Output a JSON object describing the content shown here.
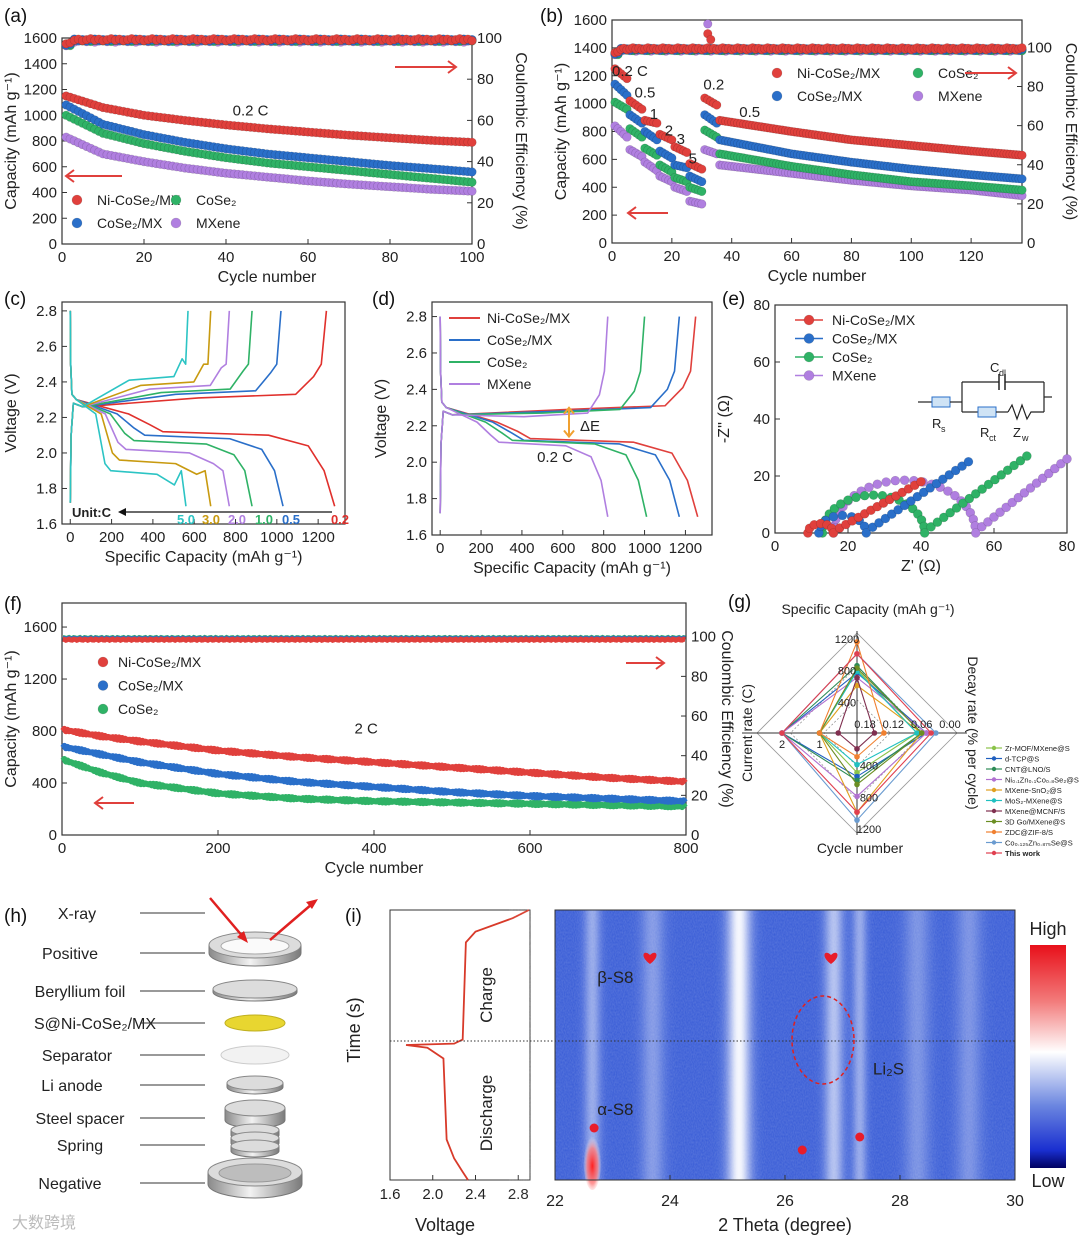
{
  "figure_labels": {
    "a": "(a)",
    "b": "(b)",
    "c": "(c)",
    "d": "(d)",
    "e": "(e)",
    "f": "(f)",
    "g": "(g)",
    "h": "(h)",
    "i": "(i)"
  },
  "watermark": "大数跨境",
  "colors": {
    "ni": "#e0403c",
    "cosemx": "#2a6fc9",
    "cose": "#2fb266",
    "mxene": "#b07fe0",
    "arrow": "#e0403c"
  },
  "chart_data": [
    {
      "panel": "a",
      "type": "scatter",
      "title": "",
      "xlabel": "Cycle number",
      "ylabel": "Capacity (mAh g⁻¹)",
      "y2label": "Coulombic Efficiency (%)",
      "xlim": [
        0,
        100
      ],
      "ylim": [
        0,
        1600
      ],
      "y2lim": [
        0,
        100
      ],
      "xticks": [
        "0",
        "20",
        "40",
        "60",
        "80",
        "100"
      ],
      "yticks": [
        "0",
        "200",
        "400",
        "600",
        "800",
        "1000",
        "1200",
        "1400",
        "1600"
      ],
      "y2ticks": [
        "0",
        "20",
        "40",
        "60",
        "80",
        "100"
      ],
      "legend_placement": "bottom-left",
      "annotations": [
        {
          "text": "0.2 C",
          "x": 46,
          "y": 1000
        }
      ],
      "x": [
        1,
        10,
        20,
        30,
        40,
        50,
        60,
        70,
        80,
        90,
        100
      ],
      "series": [
        {
          "name": "Ni-CoSe₂/MX",
          "color": "#e0403c",
          "values": [
            1150,
            1060,
            1000,
            960,
            925,
            895,
            870,
            845,
            825,
            805,
            790
          ],
          "ce": 99.2
        },
        {
          "name": "CoSe₂/MX",
          "color": "#2a6fc9",
          "values": [
            1080,
            930,
            850,
            790,
            740,
            700,
            670,
            640,
            610,
            585,
            560
          ],
          "ce": 99.0
        },
        {
          "name": "CoSe₂",
          "color": "#2fb266",
          "values": [
            1000,
            860,
            780,
            720,
            670,
            630,
            600,
            570,
            540,
            510,
            480
          ],
          "ce": 98.8
        },
        {
          "name": "MXene",
          "color": "#b07fe0",
          "values": [
            830,
            700,
            640,
            590,
            550,
            520,
            490,
            465,
            445,
            425,
            410
          ],
          "ce": 98.5
        }
      ]
    },
    {
      "panel": "b",
      "type": "scatter",
      "title": "",
      "xlabel": "Cycle number",
      "ylabel": "Capacity (mAh g⁻¹)",
      "y2label": "Coulombic Efficiency (%)",
      "xlim": [
        0,
        137
      ],
      "ylim": [
        0,
        1600
      ],
      "y2lim": [
        0,
        114
      ],
      "xticks": [
        "0",
        "20",
        "40",
        "60",
        "80",
        "100",
        "120"
      ],
      "yticks": [
        "0",
        "200",
        "400",
        "600",
        "800",
        "1000",
        "1200",
        "1400",
        "1600"
      ],
      "y2ticks": [
        "0",
        "20",
        "40",
        "60",
        "80",
        "100"
      ],
      "legend_placement": "top-right",
      "rate_labels": [
        {
          "text": "0.2 C",
          "x": 6,
          "y": 1200
        },
        {
          "text": "0.5",
          "x": 11,
          "y": 1045
        },
        {
          "text": "1",
          "x": 14,
          "y": 890
        },
        {
          "text": "2",
          "x": 19,
          "y": 770
        },
        {
          "text": "3",
          "x": 23,
          "y": 710
        },
        {
          "text": "5",
          "x": 27,
          "y": 570
        },
        {
          "text": "0.2",
          "x": 34,
          "y": 1100
        },
        {
          "text": "0.5",
          "x": 46,
          "y": 905
        }
      ],
      "x": [
        1,
        5,
        6,
        10,
        11,
        15,
        16,
        20,
        21,
        25,
        26,
        30,
        31,
        35,
        36,
        60,
        80,
        100,
        120,
        137
      ],
      "series": [
        {
          "name": "Ni-CoSe₂/MX",
          "color": "#e0403c",
          "values": [
            1250,
            1180,
            1020,
            960,
            880,
            860,
            780,
            740,
            690,
            650,
            570,
            530,
            1040,
            990,
            880,
            800,
            740,
            700,
            660,
            630
          ],
          "ce": 99.3
        },
        {
          "name": "CoSe₂/MX",
          "color": "#2a6fc9",
          "values": [
            1140,
            1060,
            920,
            860,
            800,
            740,
            660,
            610,
            560,
            540,
            480,
            440,
            920,
            860,
            740,
            640,
            580,
            530,
            490,
            460
          ],
          "ce": 99.0
        },
        {
          "name": "CoSe₂",
          "color": "#2fb266",
          "values": [
            1010,
            960,
            820,
            760,
            680,
            630,
            560,
            510,
            470,
            440,
            400,
            370,
            810,
            760,
            640,
            550,
            490,
            440,
            410,
            380
          ],
          "ce": 98.8
        },
        {
          "name": "MXene",
          "color": "#b07fe0",
          "values": [
            840,
            760,
            670,
            620,
            580,
            520,
            480,
            440,
            400,
            370,
            300,
            280,
            670,
            640,
            560,
            500,
            450,
            410,
            380,
            340
          ],
          "ce": 98.6
        }
      ],
      "ce_outliers": [
        {
          "series": 0,
          "x": 32,
          "y": 107
        },
        {
          "series": 0,
          "x": 33,
          "y": 104
        },
        {
          "series": 3,
          "x": 32,
          "y": 112
        }
      ]
    },
    {
      "panel": "c",
      "type": "line",
      "title": "",
      "xlabel": "Specific Capacity (mAh g⁻¹)",
      "ylabel": "Voltage (V)",
      "xlim": [
        -40,
        1330
      ],
      "ylim": [
        1.6,
        2.85
      ],
      "xticks": [
        "0",
        "200",
        "400",
        "600",
        "800",
        "1000",
        "1200"
      ],
      "yticks": [
        "1.6",
        "1.8",
        "2.0",
        "2.2",
        "2.4",
        "2.6",
        "2.8"
      ],
      "unit_label": "Unit:C",
      "series": [
        {
          "name": "0.2",
          "color": "#e0302c",
          "discharge_capacity": 1280,
          "charge_capacity": 1240,
          "discharge_plateau": 2.12,
          "charge_plateau": 2.33
        },
        {
          "name": "0.5",
          "color": "#2a6fc9",
          "discharge_capacity": 1030,
          "charge_capacity": 1020,
          "discharge_plateau": 2.1,
          "charge_plateau": 2.35
        },
        {
          "name": "1.0",
          "color": "#2fb266",
          "discharge_capacity": 880,
          "charge_capacity": 880,
          "discharge_plateau": 2.07,
          "charge_plateau": 2.36
        },
        {
          "name": "2.0",
          "color": "#b07fe0",
          "discharge_capacity": 770,
          "charge_capacity": 770,
          "discharge_plateau": 2.02,
          "charge_plateau": 2.38
        },
        {
          "name": "3.0",
          "color": "#c89a10",
          "discharge_capacity": 680,
          "charge_capacity": 680,
          "discharge_plateau": 1.96,
          "charge_plateau": 2.4
        },
        {
          "name": "5.0",
          "color": "#2cc4c4",
          "discharge_capacity": 560,
          "charge_capacity": 570,
          "discharge_plateau": 1.9,
          "charge_plateau": 2.43
        }
      ]
    },
    {
      "panel": "d",
      "type": "line",
      "title": "",
      "xlabel": "Specific Capacity (mAh g⁻¹)",
      "ylabel": "Voltage (V)",
      "xlim": [
        -40,
        1330
      ],
      "ylim": [
        1.6,
        2.88
      ],
      "xticks": [
        "0",
        "200",
        "400",
        "600",
        "800",
        "1000",
        "1200"
      ],
      "yticks": [
        "1.6",
        "1.8",
        "2.0",
        "2.2",
        "2.4",
        "2.6",
        "2.8"
      ],
      "annotations": {
        "delta": "ΔE",
        "rate": "0.2 C"
      },
      "series": [
        {
          "name": "Ni-CoSe₂/MX",
          "color": "#e0403c",
          "discharge_capacity": 1260,
          "charge_capacity": 1250,
          "discharge_plateau": 2.13,
          "charge_plateau": 2.31
        },
        {
          "name": "CoSe₂/MX",
          "color": "#2a6fc9",
          "discharge_capacity": 1170,
          "charge_capacity": 1170,
          "discharge_plateau": 2.12,
          "charge_plateau": 2.3
        },
        {
          "name": "CoSe₂",
          "color": "#2fb266",
          "discharge_capacity": 1010,
          "charge_capacity": 1000,
          "discharge_plateau": 2.12,
          "charge_plateau": 2.29
        },
        {
          "name": "MXene",
          "color": "#b07fe0",
          "discharge_capacity": 820,
          "charge_capacity": 820,
          "discharge_plateau": 2.11,
          "charge_plateau": 2.27
        }
      ]
    },
    {
      "panel": "e",
      "type": "scatter",
      "title": "",
      "xlabel": "Z' (Ω)",
      "ylabel": "-Z'' (Ω)",
      "xlim": [
        0,
        80
      ],
      "ylim": [
        0,
        80
      ],
      "xticks": [
        "0",
        "20",
        "40",
        "60",
        "80"
      ],
      "yticks": [
        "0",
        "20",
        "40",
        "60",
        "80"
      ],
      "circuit": {
        "rs": {
          "main": "R",
          "sub": "s"
        },
        "rct": {
          "main": "R",
          "sub": "ct"
        },
        "cdl": {
          "main": "C",
          "sub": "dl"
        },
        "zw": {
          "main": "Z",
          "sub": "w"
        }
      },
      "series": [
        {
          "name": "Ni-CoSe₂/MX",
          "color": "#e0403c",
          "rs": 9,
          "rct": 7,
          "tail_end": [
            40,
            18
          ]
        },
        {
          "name": "CoSe₂/MX",
          "color": "#2a6fc9",
          "rs": 12,
          "rct": 13,
          "tail_end": [
            53,
            25
          ]
        },
        {
          "name": "CoSe₂",
          "color": "#2fb266",
          "rs": 13,
          "rct": 28,
          "tail_end": [
            69,
            27
          ]
        },
        {
          "name": "MXene",
          "color": "#b07fe0",
          "rs": 16,
          "rct": 39,
          "tail_end": [
            80,
            26
          ]
        }
      ]
    },
    {
      "panel": "f",
      "type": "scatter",
      "title": "",
      "xlabel": "Cycle number",
      "ylabel": "Capacity (mAh g⁻¹)",
      "y2label": "Coulombic Efficiency (%)",
      "xlim": [
        0,
        800
      ],
      "ylim": [
        0,
        1785
      ],
      "y2lim": [
        0,
        117
      ],
      "xticks": [
        "0",
        "200",
        "400",
        "600",
        "800"
      ],
      "yticks": [
        "0",
        "400",
        "800",
        "1200",
        "1600"
      ],
      "y2ticks": [
        "0",
        "20",
        "40",
        "60",
        "80",
        "100"
      ],
      "annotations": [
        {
          "text": "2 C",
          "x": 390,
          "y": 780
        }
      ],
      "x": [
        1,
        50,
        100,
        200,
        300,
        400,
        500,
        600,
        700,
        800
      ],
      "series": [
        {
          "name": "Ni-CoSe₂/MX",
          "color": "#e0403c",
          "values": [
            810,
            760,
            720,
            650,
            600,
            560,
            520,
            480,
            440,
            410
          ],
          "ce": 98.5
        },
        {
          "name": "CoSe₂/MX",
          "color": "#2a6fc9",
          "values": [
            680,
            620,
            560,
            470,
            410,
            370,
            330,
            300,
            280,
            260
          ],
          "ce": 99.0
        },
        {
          "name": "CoSe₂",
          "color": "#2fb266",
          "values": [
            580,
            480,
            400,
            320,
            280,
            260,
            250,
            240,
            230,
            220
          ],
          "ce": 99.3
        }
      ]
    },
    {
      "panel": "g",
      "type": "radar",
      "title": "",
      "axes": {
        "top": "Specific Capacity (mAh g⁻¹)",
        "right": "Decay rate (% per cycle)",
        "bottom": "Cycle number",
        "left": "Current rate (C)"
      },
      "capacity_ticks": [
        "400",
        "800",
        "1200"
      ],
      "cycle_ticks": [
        "400",
        "800",
        "1200"
      ],
      "decay_ticks": [
        "0.18",
        "0.12",
        "0.06",
        "0.00"
      ],
      "rate_ticks": [
        "1",
        "2"
      ],
      "series": [
        {
          "name": "Zr-MOF/MXene@S",
          "color": "#8bc34a",
          "capacity": 800,
          "decay": 0.07,
          "cycles": 500,
          "rate": 1
        },
        {
          "name": "d-TCP@S",
          "color": "#1f5fbf",
          "capacity": 760,
          "decay": 0.05,
          "cycles": 550,
          "rate": 2
        },
        {
          "name": "CNT@LNO/S",
          "color": "#2e8b57",
          "capacity": 850,
          "decay": 0.06,
          "cycles": 600,
          "rate": 2
        },
        {
          "name": "Ni₀.₁Zn₀.₁Co₀.₈Se₂@S",
          "color": "#b070d0",
          "capacity": 700,
          "decay": 0.05,
          "cycles": 800,
          "rate": 2
        },
        {
          "name": "MXene-SnO₂@S",
          "color": "#e0a020",
          "capacity": 600,
          "decay": 0.06,
          "cycles": 1000,
          "rate": 1
        },
        {
          "name": "MoS₂-MXene@S",
          "color": "#20c0c0",
          "capacity": 780,
          "decay": 0.07,
          "cycles": 400,
          "rate": 1
        },
        {
          "name": "MXene@MCNF/S",
          "color": "#803050",
          "capacity": 700,
          "decay": 0.16,
          "cycles": 200,
          "rate": 0.5
        },
        {
          "name": "3D Go/MXene@S",
          "color": "#6b8e23",
          "capacity": 820,
          "decay": 0.06,
          "cycles": 650,
          "rate": 1
        },
        {
          "name": "ZDC@ZIF-8/S",
          "color": "#f08030",
          "capacity": 1150,
          "decay": 0.14,
          "cycles": 300,
          "rate": 1
        },
        {
          "name": "Co₀.₁₂₅Zn₀.₈₇₅Se@S",
          "color": "#6a9bd0",
          "capacity": 1000,
          "decay": 0.03,
          "cycles": 1100,
          "rate": 2
        },
        {
          "name": "This work",
          "color": "#e04050",
          "capacity": 1000,
          "decay": 0.04,
          "cycles": 1000,
          "rate": 2
        }
      ]
    },
    {
      "panel": "i",
      "type": "heatmap",
      "title": "",
      "voltage_xlabel": "Voltage",
      "ylabel": "Time (s)",
      "voltage_ticks": [
        "1.6",
        "2.0",
        "2.4",
        "2.8"
      ],
      "voltage_lim": [
        1.6,
        2.91
      ],
      "voltage_profile": [
        [
          0,
          2.33
        ],
        [
          0.03,
          2.28
        ],
        [
          0.08,
          2.2
        ],
        [
          0.15,
          2.13
        ],
        [
          0.45,
          2.1
        ],
        [
          0.49,
          1.95
        ],
        [
          0.5,
          1.75
        ],
        [
          0.505,
          2.2
        ],
        [
          0.52,
          2.28
        ],
        [
          0.88,
          2.31
        ],
        [
          0.92,
          2.4
        ],
        [
          0.97,
          2.75
        ],
        [
          1,
          2.9
        ]
      ],
      "stage_labels": {
        "charge": "Charge",
        "discharge": "Discharge"
      },
      "xlabel": "2 Theta (degree)",
      "xlim": [
        22,
        30
      ],
      "xticks": [
        "22",
        "24",
        "26",
        "28",
        "30"
      ],
      "bright_bands": [
        {
          "theta": 22.65,
          "strength": 0.45,
          "width": 0.14
        },
        {
          "theta": 23.7,
          "strength": 0.35,
          "width": 0.2
        },
        {
          "theta": 25.2,
          "strength": 0.95,
          "width": 0.2
        },
        {
          "theta": 26.85,
          "strength": 0.6,
          "width": 0.16
        },
        {
          "theta": 27.3,
          "strength": 0.45,
          "width": 0.12
        },
        {
          "theta": 28.3,
          "strength": 0.3,
          "width": 0.22
        },
        {
          "theta": 29.2,
          "strength": 0.3,
          "width": 0.22
        }
      ],
      "peak_labels": [
        {
          "text": "β-S8",
          "theta": 23.05,
          "time": 0.73
        },
        {
          "text": "α-S8",
          "theta": 23.05,
          "time": 0.24
        },
        {
          "text": "Li₂S",
          "theta": 27.8,
          "time": 0.39
        }
      ],
      "colorbar": {
        "high": "High",
        "low": "Low"
      }
    }
  ],
  "schematic_h": {
    "xray": "X-ray",
    "layers": [
      "Positive",
      "Beryllium foil",
      "S@Ni-CoSe₂/MX",
      "Separator",
      "Li anode",
      "Steel spacer",
      "Spring",
      "Negative"
    ]
  }
}
